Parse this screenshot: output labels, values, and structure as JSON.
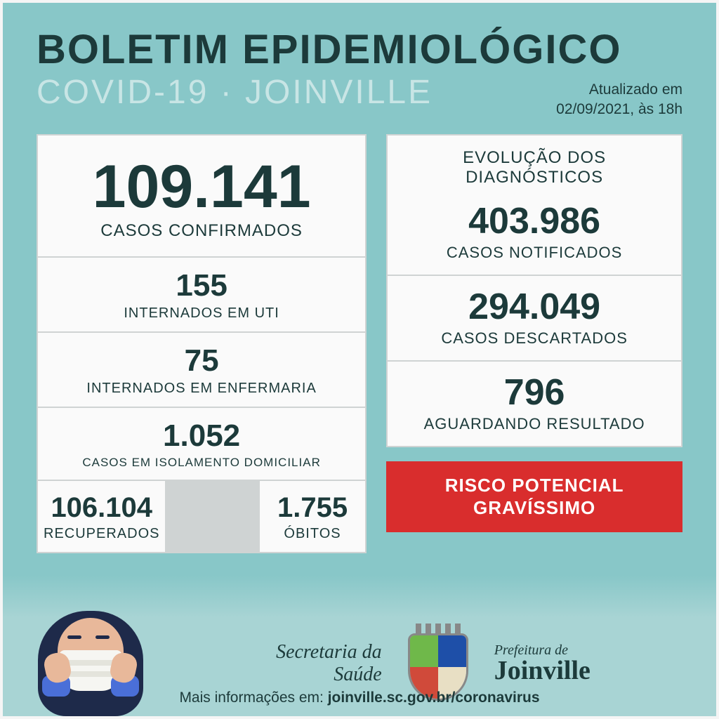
{
  "header": {
    "title_main": "BOLETIM EPIDEMIOLÓGICO",
    "title_sub": "COVID-19 · JOINVILLE",
    "update_line1": "Atualizado em",
    "update_line2": "02/09/2021, às 18h"
  },
  "left": {
    "confirmed_value": "109.141",
    "confirmed_label": "CASOS CONFIRMADOS",
    "uti_value": "155",
    "uti_label": "INTERNADOS EM UTI",
    "enf_value": "75",
    "enf_label": "INTERNADOS EM ENFERMARIA",
    "iso_value": "1.052",
    "iso_label": "CASOS EM ISOLAMENTO DOMICILIAR",
    "rec_value": "106.104",
    "rec_label": "RECUPERADOS",
    "obt_value": "1.755",
    "obt_label": "ÓBITOS"
  },
  "right": {
    "title": "EVOLUÇÃO DOS DIAGNÓSTICOS",
    "notif_value": "403.986",
    "notif_label": "CASOS NOTIFICADOS",
    "desc_value": "294.049",
    "desc_label": "CASOS DESCARTADOS",
    "agu_value": "796",
    "agu_label": "AGUARDANDO RESULTADO"
  },
  "risk": {
    "line1": "RISCO POTENCIAL",
    "line2": "GRAVÍSSIMO",
    "bg_color": "#d92d2d",
    "text_color": "#ffffff"
  },
  "footer": {
    "secretaria_line1": "Secretaria da",
    "secretaria_line2": "Saúde",
    "prefeitura_line1": "Prefeitura de",
    "prefeitura_line2": "Joinville",
    "more_info_label": "Mais informações em: ",
    "more_info_url": "joinville.sc.gov.br/coronavirus"
  },
  "colors": {
    "page_bg": "#88c7c8",
    "card_bg": "#fafafa",
    "card_border": "#cfd3d3",
    "text_dark": "#1c3a3a",
    "text_light": "#c8e5e5"
  }
}
